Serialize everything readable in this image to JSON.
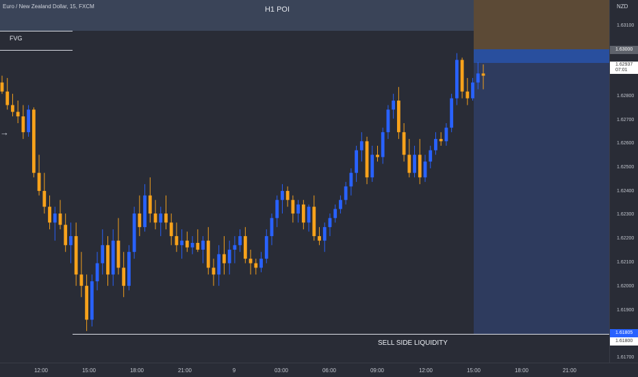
{
  "header": {
    "symbol_title": "Euro / New Zealand Dollar, 15, FXCM",
    "currency": "NZD"
  },
  "annotations": {
    "poi_label": "H1 POI",
    "fvg_label": "FVG",
    "ssl_label": "SELL SIDE LIQUIDITY",
    "arrow_glyph": "→"
  },
  "price_axis": {
    "ticks": [
      "1.63100",
      "1.62800",
      "1.62700",
      "1.62600",
      "1.62500",
      "1.62400",
      "1.62300",
      "1.62200",
      "1.62100",
      "1.62000",
      "1.61900",
      "1.61700"
    ],
    "tag_level": "1.63000",
    "tag_current_price": "1.62937",
    "tag_countdown": "07:01",
    "tag_ssl_blue": "1.61805",
    "tag_ssl_white": "1.61800"
  },
  "time_axis": {
    "ticks": [
      "12:00",
      "15:00",
      "18:00",
      "21:00",
      "9",
      "03:00",
      "06:00",
      "09:00",
      "12:00",
      "15:00",
      "18:00",
      "21:00"
    ]
  },
  "colors": {
    "bull": "#2962ff",
    "bear": "#f7a21b",
    "background": "#292c36"
  },
  "chart_data": {
    "type": "candlestick",
    "title": "Euro / New Zealand Dollar, 15, FXCM",
    "ylabel": "NZD",
    "ylim": [
      1.6166,
      1.6325
    ],
    "x_ticks": [
      "12:00",
      "15:00",
      "18:00",
      "21:00",
      "9",
      "03:00",
      "06:00",
      "09:00",
      "12:00",
      "15:00",
      "18:00",
      "21:00"
    ],
    "levels": [
      {
        "name": "SELL SIDE LIQUIDITY",
        "price": 1.61805
      },
      {
        "name": "H1 POI top",
        "price": 1.63
      }
    ],
    "candles": [
      [
        1.629,
        1.6293,
        1.6285,
        1.6286
      ],
      [
        1.6286,
        1.6292,
        1.6278,
        1.628
      ],
      [
        1.628,
        1.6285,
        1.6275,
        1.6277
      ],
      [
        1.6277,
        1.6282,
        1.6272,
        1.6275
      ],
      [
        1.6275,
        1.628,
        1.6265,
        1.6268
      ],
      [
        1.6268,
        1.628,
        1.6266,
        1.6278
      ],
      [
        1.6278,
        1.6279,
        1.6248,
        1.625
      ],
      [
        1.625,
        1.6258,
        1.624,
        1.6242
      ],
      [
        1.6242,
        1.625,
        1.6232,
        1.6235
      ],
      [
        1.6235,
        1.624,
        1.6225,
        1.6228
      ],
      [
        1.6228,
        1.6235,
        1.622,
        1.6232
      ],
      [
        1.6232,
        1.6238,
        1.6225,
        1.6227
      ],
      [
        1.6227,
        1.6232,
        1.6215,
        1.6218
      ],
      [
        1.6218,
        1.6228,
        1.621,
        1.6222
      ],
      [
        1.6222,
        1.6228,
        1.62,
        1.6205
      ],
      [
        1.6205,
        1.6215,
        1.6195,
        1.62
      ],
      [
        1.62,
        1.6205,
        1.618,
        1.6185
      ],
      [
        1.6185,
        1.6205,
        1.6182,
        1.6202
      ],
      [
        1.6202,
        1.6215,
        1.6198,
        1.621
      ],
      [
        1.621,
        1.6225,
        1.6205,
        1.6218
      ],
      [
        1.6218,
        1.6222,
        1.62,
        1.6205
      ],
      [
        1.6205,
        1.6225,
        1.62,
        1.622
      ],
      [
        1.622,
        1.623,
        1.6205,
        1.6208
      ],
      [
        1.6208,
        1.6215,
        1.6195,
        1.62
      ],
      [
        1.62,
        1.6218,
        1.6198,
        1.6215
      ],
      [
        1.6215,
        1.6235,
        1.6212,
        1.6232
      ],
      [
        1.6232,
        1.624,
        1.6222,
        1.6226
      ],
      [
        1.6226,
        1.6245,
        1.6224,
        1.624
      ],
      [
        1.624,
        1.6248,
        1.6228,
        1.6232
      ],
      [
        1.6232,
        1.6238,
        1.6225,
        1.6228
      ],
      [
        1.6228,
        1.6235,
        1.6222,
        1.6232
      ],
      [
        1.6232,
        1.624,
        1.6225,
        1.6228
      ],
      [
        1.6228,
        1.6232,
        1.6218,
        1.6222
      ],
      [
        1.6222,
        1.6228,
        1.6215,
        1.6218
      ],
      [
        1.6218,
        1.6225,
        1.6212,
        1.622
      ],
      [
        1.622,
        1.6224,
        1.6215,
        1.6217
      ],
      [
        1.6217,
        1.6222,
        1.6214,
        1.6219
      ],
      [
        1.6219,
        1.6225,
        1.6215,
        1.6216
      ],
      [
        1.6216,
        1.6222,
        1.621,
        1.622
      ],
      [
        1.622,
        1.6226,
        1.6205,
        1.6208
      ],
      [
        1.6208,
        1.6212,
        1.62,
        1.6205
      ],
      [
        1.6205,
        1.6218,
        1.62,
        1.6214
      ],
      [
        1.6214,
        1.6222,
        1.6205,
        1.621
      ],
      [
        1.621,
        1.622,
        1.6205,
        1.6216
      ],
      [
        1.6216,
        1.6222,
        1.621,
        1.6218
      ],
      [
        1.6218,
        1.6225,
        1.6215,
        1.6222
      ],
      [
        1.6222,
        1.6226,
        1.621,
        1.6212
      ],
      [
        1.6212,
        1.6216,
        1.6205,
        1.621
      ],
      [
        1.621,
        1.6212,
        1.6205,
        1.6208
      ],
      [
        1.6208,
        1.6215,
        1.6206,
        1.6212
      ],
      [
        1.6212,
        1.6225,
        1.621,
        1.6222
      ],
      [
        1.6222,
        1.6232,
        1.6218,
        1.623
      ],
      [
        1.623,
        1.624,
        1.6226,
        1.6238
      ],
      [
        1.6238,
        1.6245,
        1.6232,
        1.6242
      ],
      [
        1.6242,
        1.6244,
        1.6235,
        1.6238
      ],
      [
        1.6238,
        1.624,
        1.6228,
        1.6232
      ],
      [
        1.6232,
        1.6238,
        1.6228,
        1.6236
      ],
      [
        1.6236,
        1.6238,
        1.6225,
        1.6228
      ],
      [
        1.6228,
        1.6236,
        1.6224,
        1.6235
      ],
      [
        1.6235,
        1.624,
        1.622,
        1.6222
      ],
      [
        1.6222,
        1.6226,
        1.6218,
        1.622
      ],
      [
        1.622,
        1.6228,
        1.6215,
        1.6226
      ],
      [
        1.6226,
        1.6232,
        1.6222,
        1.623
      ],
      [
        1.623,
        1.6236,
        1.6228,
        1.6234
      ],
      [
        1.6234,
        1.624,
        1.6232,
        1.6238
      ],
      [
        1.6238,
        1.6246,
        1.6236,
        1.6244
      ],
      [
        1.6244,
        1.6252,
        1.624,
        1.625
      ],
      [
        1.625,
        1.6262,
        1.6246,
        1.626
      ],
      [
        1.626,
        1.6268,
        1.6255,
        1.6264
      ],
      [
        1.6264,
        1.6266,
        1.6245,
        1.6248
      ],
      [
        1.6248,
        1.6262,
        1.6246,
        1.6258
      ],
      [
        1.6258,
        1.6262,
        1.6255,
        1.6257
      ],
      [
        1.6257,
        1.627,
        1.6254,
        1.6268
      ],
      [
        1.6268,
        1.628,
        1.6265,
        1.6278
      ],
      [
        1.6278,
        1.6285,
        1.6274,
        1.6282
      ],
      [
        1.6282,
        1.6288,
        1.6265,
        1.6268
      ],
      [
        1.6268,
        1.6272,
        1.6255,
        1.6258
      ],
      [
        1.6258,
        1.6265,
        1.6248,
        1.625
      ],
      [
        1.625,
        1.6262,
        1.6248,
        1.6258
      ],
      [
        1.6258,
        1.6265,
        1.6245,
        1.6248
      ],
      [
        1.6248,
        1.6258,
        1.6246,
        1.6255
      ],
      [
        1.6255,
        1.6262,
        1.6252,
        1.626
      ],
      [
        1.626,
        1.6268,
        1.6258,
        1.6265
      ],
      [
        1.6265,
        1.6268,
        1.6262,
        1.6264
      ],
      [
        1.6264,
        1.6272,
        1.6262,
        1.627
      ],
      [
        1.627,
        1.6285,
        1.6268,
        1.6283
      ],
      [
        1.6283,
        1.6303,
        1.628,
        1.63
      ],
      [
        1.63,
        1.6301,
        1.6283,
        1.6286
      ],
      [
        1.6286,
        1.6292,
        1.628,
        1.6283
      ],
      [
        1.6283,
        1.6292,
        1.6282,
        1.629
      ],
      [
        1.629,
        1.6299,
        1.6287,
        1.6294
      ],
      [
        1.6294,
        1.6298,
        1.6287,
        1.6293
      ]
    ]
  }
}
